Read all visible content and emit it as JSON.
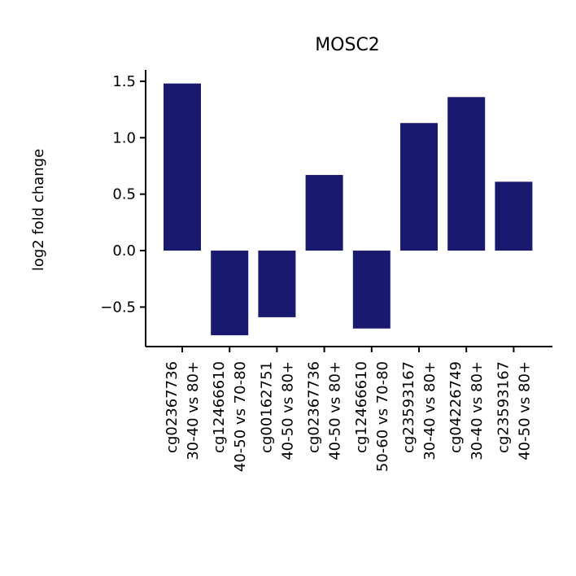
{
  "chart_data": {
    "type": "bar",
    "title": "MOSC2",
    "xlabel": "",
    "ylabel": "log2 fold change",
    "ylim": [
      -0.85,
      1.6
    ],
    "yticks": [
      -0.5,
      0.0,
      0.5,
      1.0,
      1.5
    ],
    "ytick_labels": [
      "−0.5",
      "0.0",
      "0.5",
      "1.0",
      "1.5"
    ],
    "bar_color": "#191970",
    "grid": false,
    "categories": [
      [
        "cg02367736",
        "30-40 vs 80+"
      ],
      [
        "cg12466610",
        "40-50 vs 70-80"
      ],
      [
        "cg00162751",
        "40-50 vs 80+"
      ],
      [
        "cg02367736",
        "40-50 vs 80+"
      ],
      [
        "cg12466610",
        "50-60 vs 70-80"
      ],
      [
        "cg23593167",
        "30-40 vs 80+"
      ],
      [
        "cg04226749",
        "30-40 vs 80+"
      ],
      [
        "cg23593167",
        "40-50 vs 80+"
      ]
    ],
    "values": [
      1.48,
      -0.75,
      -0.59,
      0.67,
      -0.69,
      1.13,
      1.36,
      0.61
    ]
  }
}
